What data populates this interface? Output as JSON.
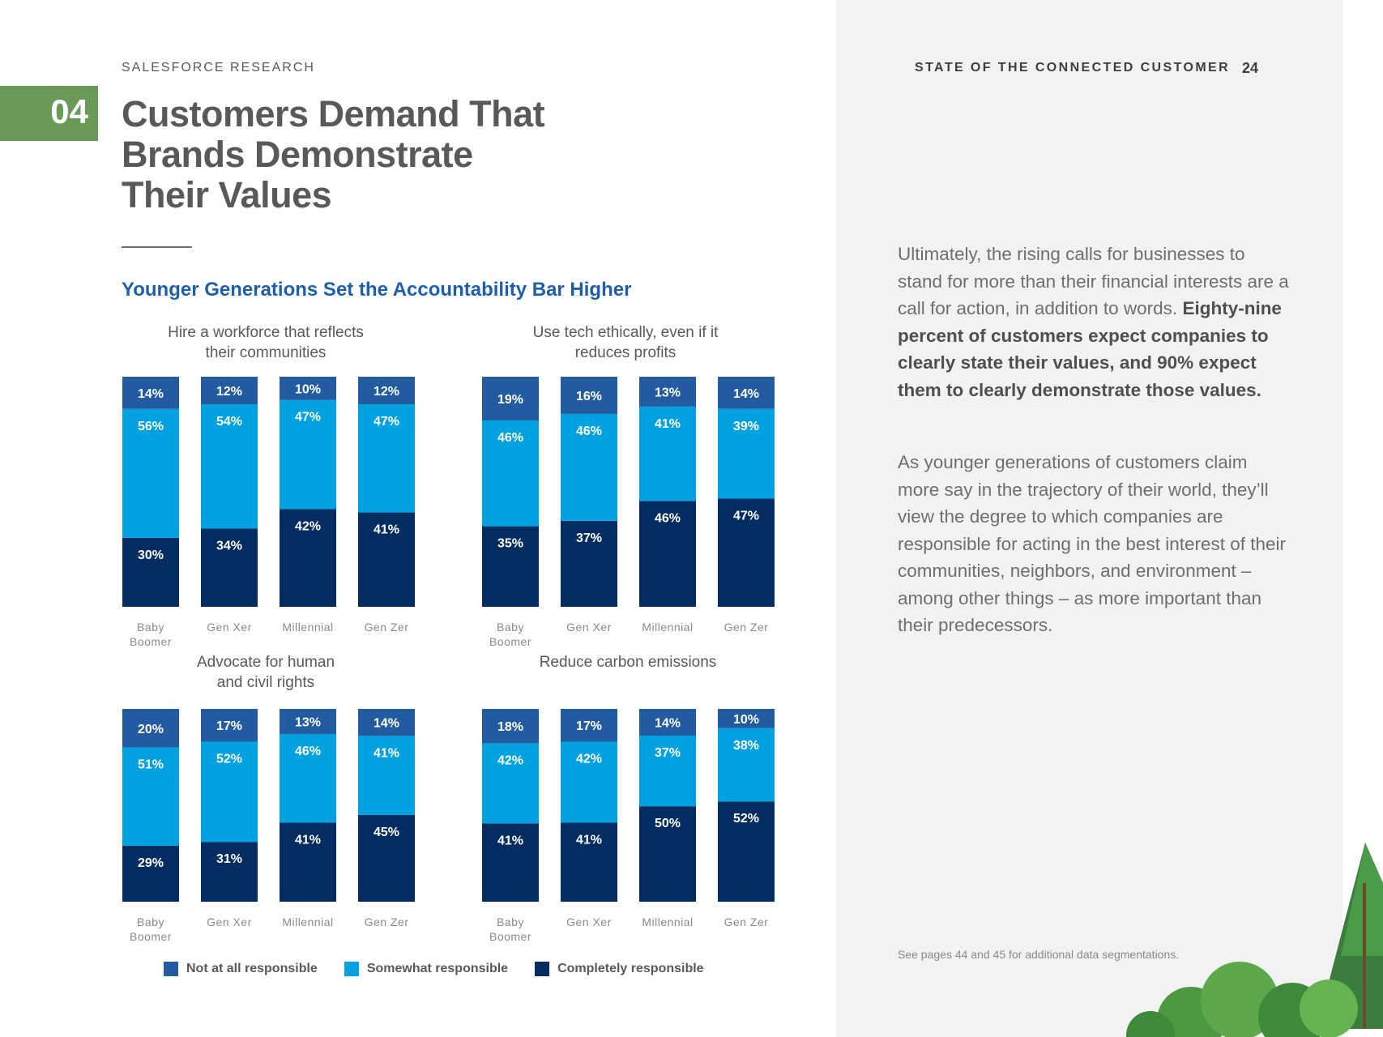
{
  "header": {
    "eyebrow": "SALESFORCE RESEARCH",
    "report_title": "STATE OF THE CONNECTED CUSTOMER",
    "page_number": "24"
  },
  "chapter": {
    "number": "04",
    "color": "#6a9a57"
  },
  "page_title": [
    "Customers Demand That",
    "Brands Demonstrate",
    "Their Values"
  ],
  "chart_heading": "Younger Generations Set the Accountability Bar Higher",
  "colors": {
    "not_at_all": "#235ba0",
    "somewhat": "#00a1e0",
    "completely": "#032d60"
  },
  "chart_data": [
    {
      "type": "bar",
      "stacked": true,
      "title": [
        "Hire a workforce that reflects",
        "their communities"
      ],
      "categories": [
        [
          "Baby",
          "Boomer"
        ],
        [
          "Gen Xer"
        ],
        [
          "Millennial"
        ],
        [
          "Gen Zer"
        ]
      ],
      "series": [
        {
          "name": "Completely responsible",
          "values": [
            30,
            34,
            42,
            41
          ]
        },
        {
          "name": "Somewhat responsible",
          "values": [
            56,
            54,
            47,
            47
          ]
        },
        {
          "name": "Not at all responsible",
          "values": [
            14,
            12,
            10,
            12
          ]
        }
      ],
      "ylim": [
        0,
        100
      ]
    },
    {
      "type": "bar",
      "stacked": true,
      "title": [
        "Use tech ethically, even if it",
        "reduces profits"
      ],
      "categories": [
        [
          "Baby",
          "Boomer"
        ],
        [
          "Gen Xer"
        ],
        [
          "Millennial"
        ],
        [
          "Gen Zer"
        ]
      ],
      "series": [
        {
          "name": "Completely responsible",
          "values": [
            35,
            37,
            46,
            47
          ]
        },
        {
          "name": "Somewhat responsible",
          "values": [
            46,
            46,
            41,
            39
          ]
        },
        {
          "name": "Not at all responsible",
          "values": [
            19,
            16,
            13,
            14
          ]
        }
      ],
      "ylim": [
        0,
        100
      ]
    },
    {
      "type": "bar",
      "stacked": true,
      "title": [
        "Advocate for human",
        "and civil rights"
      ],
      "categories": [
        [
          "Baby",
          "Boomer"
        ],
        [
          "Gen Xer"
        ],
        [
          "Millennial"
        ],
        [
          "Gen Zer"
        ]
      ],
      "series": [
        {
          "name": "Completely responsible",
          "values": [
            29,
            31,
            41,
            45
          ]
        },
        {
          "name": "Somewhat responsible",
          "values": [
            51,
            52,
            46,
            41
          ]
        },
        {
          "name": "Not at all responsible",
          "values": [
            20,
            17,
            13,
            14
          ]
        }
      ],
      "ylim": [
        0,
        100
      ]
    },
    {
      "type": "bar",
      "stacked": true,
      "title": [
        "Reduce carbon emissions"
      ],
      "categories": [
        [
          "Baby",
          "Boomer"
        ],
        [
          "Gen Xer"
        ],
        [
          "Millennial"
        ],
        [
          "Gen Zer"
        ]
      ],
      "series": [
        {
          "name": "Completely responsible",
          "values": [
            41,
            41,
            50,
            52
          ]
        },
        {
          "name": "Somewhat responsible",
          "values": [
            42,
            42,
            37,
            38
          ]
        },
        {
          "name": "Not at all responsible",
          "values": [
            18,
            17,
            14,
            10
          ]
        }
      ],
      "ylim": [
        0,
        100
      ]
    }
  ],
  "legend": {
    "not_at_all": "Not at all responsible",
    "somewhat": "Somewhat responsible",
    "completely": "Completely responsible"
  },
  "body": {
    "para1_lead": "Ultimately, the rising calls for businesses to stand for more than their financial interests are a call for action, in addition to words.",
    "para1_bold": "Eighty-nine percent of customers expect companies to clearly state their values, and 90% expect them to clearly demonstrate those values.",
    "para2": "As younger generations of customers claim more say in the trajectory of their world, they’ll view the degree to which companies are responsible for acting in the best interest of their communities, neighbors, and environment – among other things – as more important than their predecessors."
  },
  "footnote": "See pages 44 and 45 for additional data segmentations."
}
